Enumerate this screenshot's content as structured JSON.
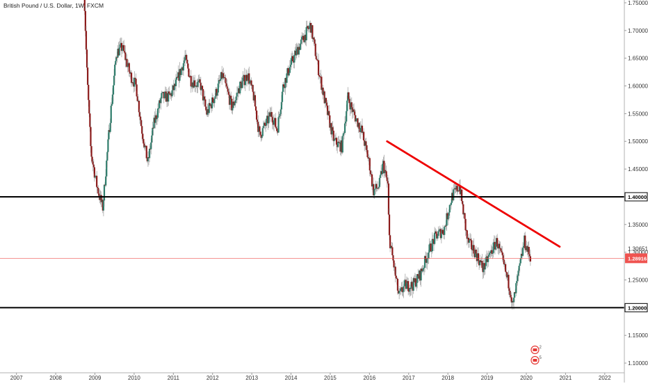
{
  "header": {
    "title": "British Pound / U.S. Dollar, 1W, FXCM"
  },
  "chart_data": {
    "type": "candlestick",
    "title": "British Pound / U.S. Dollar, 1W, FXCM",
    "x_range": [
      2006.58,
      2022.5
    ],
    "y_range": [
      1.0825,
      1.755
    ],
    "x_ticks": [
      "2007",
      "2008",
      "2009",
      "2010",
      "2011",
      "2012",
      "2013",
      "2014",
      "2015",
      "2016",
      "2017",
      "2018",
      "2019",
      "2020",
      "2021",
      "2022"
    ],
    "y_ticks": [
      "1.10000",
      "1.15000",
      "1.20000",
      "1.25000",
      "1.30000",
      "1.35000",
      "1.40000",
      "1.45000",
      "1.50000",
      "1.55000",
      "1.60000",
      "1.65000",
      "1.70000",
      "1.75000"
    ],
    "price_path": [
      [
        2008.72,
        1.78
      ],
      [
        2008.8,
        1.62
      ],
      [
        2008.9,
        1.48
      ],
      [
        2009.05,
        1.42
      ],
      [
        2009.2,
        1.38
      ],
      [
        2009.4,
        1.55
      ],
      [
        2009.55,
        1.66
      ],
      [
        2009.7,
        1.67
      ],
      [
        2009.9,
        1.62
      ],
      [
        2010.05,
        1.6
      ],
      [
        2010.2,
        1.52
      ],
      [
        2010.35,
        1.46
      ],
      [
        2010.5,
        1.53
      ],
      [
        2010.7,
        1.58
      ],
      [
        2010.9,
        1.58
      ],
      [
        2011.05,
        1.6
      ],
      [
        2011.3,
        1.65
      ],
      [
        2011.45,
        1.61
      ],
      [
        2011.7,
        1.6
      ],
      [
        2011.85,
        1.55
      ],
      [
        2012.05,
        1.58
      ],
      [
        2012.25,
        1.62
      ],
      [
        2012.5,
        1.56
      ],
      [
        2012.7,
        1.6
      ],
      [
        2012.9,
        1.62
      ],
      [
        2013.05,
        1.58
      ],
      [
        2013.2,
        1.51
      ],
      [
        2013.5,
        1.55
      ],
      [
        2013.65,
        1.52
      ],
      [
        2013.8,
        1.6
      ],
      [
        2014.0,
        1.64
      ],
      [
        2014.2,
        1.67
      ],
      [
        2014.5,
        1.71
      ],
      [
        2014.7,
        1.63
      ],
      [
        2014.9,
        1.56
      ],
      [
        2015.1,
        1.5
      ],
      [
        2015.3,
        1.49
      ],
      [
        2015.45,
        1.58
      ],
      [
        2015.6,
        1.55
      ],
      [
        2015.8,
        1.52
      ],
      [
        2016.0,
        1.46
      ],
      [
        2016.1,
        1.41
      ],
      [
        2016.25,
        1.42
      ],
      [
        2016.35,
        1.46
      ],
      [
        2016.47,
        1.42
      ],
      [
        2016.5,
        1.33
      ],
      [
        2016.75,
        1.22
      ],
      [
        2016.9,
        1.24
      ],
      [
        2017.1,
        1.24
      ],
      [
        2017.3,
        1.26
      ],
      [
        2017.5,
        1.3
      ],
      [
        2017.7,
        1.33
      ],
      [
        2017.9,
        1.34
      ],
      [
        2018.1,
        1.4
      ],
      [
        2018.3,
        1.42
      ],
      [
        2018.5,
        1.32
      ],
      [
        2018.7,
        1.3
      ],
      [
        2018.9,
        1.27
      ],
      [
        2019.1,
        1.3
      ],
      [
        2019.25,
        1.32
      ],
      [
        2019.45,
        1.27
      ],
      [
        2019.6,
        1.23
      ],
      [
        2019.65,
        1.2
      ],
      [
        2019.8,
        1.26
      ],
      [
        2019.95,
        1.32
      ],
      [
        2020.05,
        1.3
      ],
      [
        2020.12,
        1.29
      ]
    ],
    "horizontal_levels": [
      {
        "price": 1.4,
        "label": "1.40000",
        "color": "#000000"
      },
      {
        "price": 1.2,
        "label": "1.20000",
        "color": "#000000"
      }
    ],
    "current_price": {
      "price": 1.2891,
      "label": "1.28916",
      "color": "#ef5350"
    },
    "secondary_label": {
      "price": 1.3065,
      "label": "1.30651"
    },
    "trendline": {
      "color": "#ee0000",
      "points": [
        [
          2016.45,
          1.5
        ],
        [
          2020.85,
          1.31
        ]
      ]
    },
    "candle_colors": {
      "up": "#2e7d6b",
      "down": "#8b1a1a",
      "wick": "#9a9a9a"
    },
    "grid": false,
    "event_markers": [
      {
        "x": 2020.15,
        "count": "2"
      },
      {
        "x": 2020.15,
        "count": "5"
      }
    ]
  }
}
